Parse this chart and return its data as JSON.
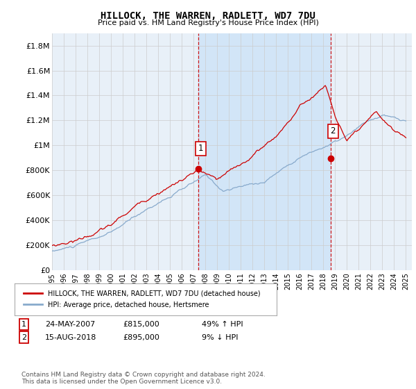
{
  "title": "HILLOCK, THE WARREN, RADLETT, WD7 7DU",
  "subtitle": "Price paid vs. HM Land Registry's House Price Index (HPI)",
  "ylabel_ticks": [
    "£0",
    "£200K",
    "£400K",
    "£600K",
    "£800K",
    "£1M",
    "£1.2M",
    "£1.4M",
    "£1.6M",
    "£1.8M"
  ],
  "ytick_values": [
    0,
    200000,
    400000,
    600000,
    800000,
    1000000,
    1200000,
    1400000,
    1600000,
    1800000
  ],
  "ylim": [
    0,
    1900000
  ],
  "xlim_start": 1995.0,
  "xlim_end": 2025.5,
  "xtick_years": [
    1995,
    1996,
    1997,
    1998,
    1999,
    2000,
    2001,
    2002,
    2003,
    2004,
    2005,
    2006,
    2007,
    2008,
    2009,
    2010,
    2011,
    2012,
    2013,
    2014,
    2015,
    2016,
    2017,
    2018,
    2019,
    2020,
    2021,
    2022,
    2023,
    2024,
    2025
  ],
  "red_line_color": "#cc0000",
  "blue_line_color": "#88aacc",
  "marker1_x": 2007.39,
  "marker1_y": 815000,
  "marker2_x": 2018.62,
  "marker2_y": 895000,
  "dashed_line_color": "#cc0000",
  "plot_bg_color": "#e8f0f8",
  "shade_bg_color": "#d0e4f7",
  "outer_bg_color": "#ffffff",
  "legend_label_red": "HILLOCK, THE WARREN, RADLETT, WD7 7DU (detached house)",
  "legend_label_blue": "HPI: Average price, detached house, Hertsmere",
  "annotation1_date": "24-MAY-2007",
  "annotation1_price": "£815,000",
  "annotation1_hpi": "49% ↑ HPI",
  "annotation2_date": "15-AUG-2018",
  "annotation2_price": "£895,000",
  "annotation2_hpi": "9% ↓ HPI",
  "footer": "Contains HM Land Registry data © Crown copyright and database right 2024.\nThis data is licensed under the Open Government Licence v3.0.",
  "grid_color": "#cccccc"
}
